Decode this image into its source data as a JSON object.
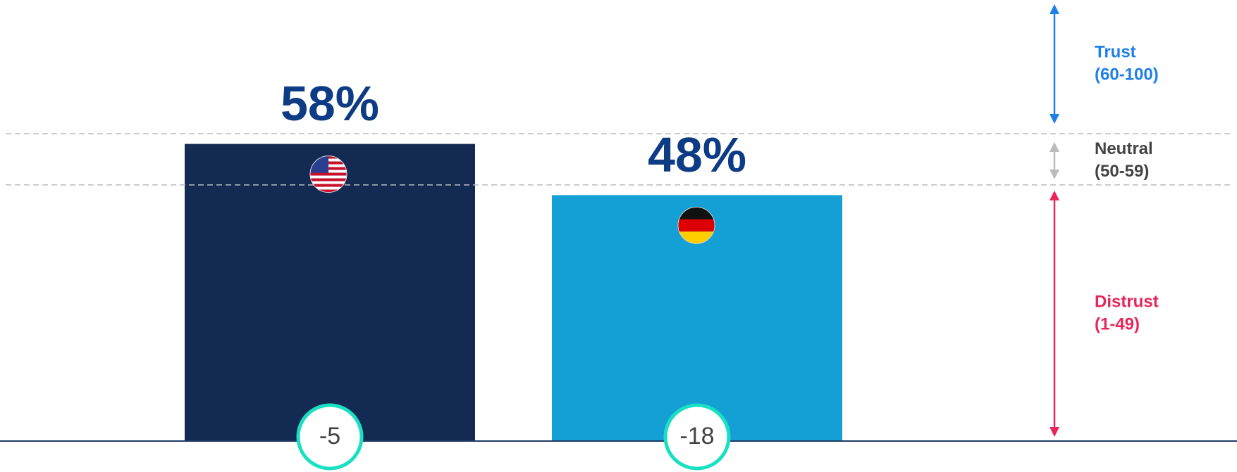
{
  "chart_data": {
    "type": "bar",
    "categories": [
      null,
      null
    ],
    "values": [
      58,
      48
    ],
    "value_labels": [
      "58%",
      "48%"
    ],
    "colors": [
      "#132b53",
      "#14a0d4"
    ],
    "changes": [
      -5,
      -18
    ],
    "ylim": [
      0,
      60
    ],
    "thresholds": [
      60,
      50
    ],
    "bands": [
      {
        "label": "Trust",
        "range": "(60-100)",
        "color": "#1e7fe8"
      },
      {
        "label": "Neutral",
        "range": "(50-59)",
        "color": "#444444"
      },
      {
        "label": "Distrust",
        "range": "(1-49)",
        "color": "#e8265a"
      }
    ]
  }
}
